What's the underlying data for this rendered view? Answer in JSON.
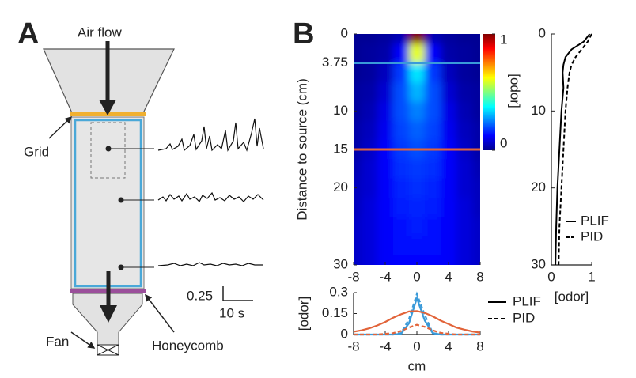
{
  "panels": {
    "a": {
      "label": "A",
      "air_flow": "Air flow",
      "grid": "Grid",
      "fan": "Fan",
      "honeycomb": "Honeycomb",
      "scale_y": "0.25",
      "scale_x": "10 s"
    },
    "b": {
      "label": "B"
    }
  },
  "chart_data": [
    {
      "type": "heatmap",
      "y_label": "Distance to source (cm)",
      "x": [
        -8,
        -6,
        -4,
        -2,
        0,
        2,
        4,
        6,
        8
      ],
      "y": [
        0,
        2.5,
        5,
        7.5,
        10,
        12.5,
        15,
        17.5,
        20,
        22.5,
        25,
        27.5,
        30
      ],
      "values": [
        [
          0.02,
          0.02,
          0.03,
          0.05,
          1.0,
          0.05,
          0.03,
          0.02,
          0.02
        ],
        [
          0.02,
          0.03,
          0.04,
          0.12,
          0.6,
          0.12,
          0.04,
          0.03,
          0.02
        ],
        [
          0.02,
          0.03,
          0.06,
          0.18,
          0.35,
          0.18,
          0.06,
          0.03,
          0.02
        ],
        [
          0.03,
          0.04,
          0.08,
          0.2,
          0.3,
          0.2,
          0.08,
          0.04,
          0.03
        ],
        [
          0.03,
          0.05,
          0.1,
          0.2,
          0.25,
          0.2,
          0.1,
          0.05,
          0.03
        ],
        [
          0.04,
          0.06,
          0.11,
          0.19,
          0.22,
          0.19,
          0.11,
          0.06,
          0.04
        ],
        [
          0.04,
          0.07,
          0.12,
          0.18,
          0.2,
          0.18,
          0.12,
          0.07,
          0.04
        ],
        [
          0.05,
          0.08,
          0.12,
          0.17,
          0.18,
          0.17,
          0.12,
          0.08,
          0.05
        ],
        [
          0.06,
          0.08,
          0.12,
          0.16,
          0.17,
          0.16,
          0.12,
          0.08,
          0.06
        ],
        [
          0.06,
          0.09,
          0.12,
          0.15,
          0.16,
          0.15,
          0.12,
          0.09,
          0.06
        ],
        [
          0.07,
          0.09,
          0.12,
          0.14,
          0.15,
          0.14,
          0.12,
          0.09,
          0.07
        ],
        [
          0.07,
          0.09,
          0.12,
          0.14,
          0.14,
          0.14,
          0.12,
          0.09,
          0.07
        ],
        [
          0.07,
          0.09,
          0.12,
          0.13,
          0.13,
          0.13,
          0.12,
          0.09,
          0.07
        ]
      ],
      "xlim": [
        -8,
        8
      ],
      "xticks": [
        -8,
        -4,
        0,
        4,
        8
      ],
      "ylim": [
        0,
        30
      ],
      "yticks": [
        0,
        3.75,
        10,
        15,
        20,
        30
      ],
      "y_reversed": true,
      "colormap": "jet",
      "colorbar": {
        "label": "[odor]",
        "lim": [
          0,
          1
        ],
        "ticks": [
          0,
          1
        ]
      },
      "lines": [
        {
          "y": 3.75,
          "color": "#3a9ad9"
        },
        {
          "y": 15,
          "color": "#e2643a"
        }
      ]
    },
    {
      "type": "profile",
      "x_label": "[odor]",
      "y": [
        0,
        1,
        2,
        3,
        4,
        5,
        7,
        10,
        15,
        20,
        25,
        30
      ],
      "series": [
        {
          "name": "PLIF",
          "color": "#000000",
          "dash": false,
          "values": [
            0.95,
            0.8,
            0.5,
            0.35,
            0.3,
            0.28,
            0.3,
            0.25,
            0.2,
            0.15,
            0.12,
            0.1
          ]
        },
        {
          "name": "PID",
          "color": "#000000",
          "dash": true,
          "values": [
            1.0,
            0.9,
            0.75,
            0.6,
            0.5,
            0.45,
            0.4,
            0.35,
            0.3,
            0.25,
            0.2,
            0.18
          ]
        }
      ],
      "xlim": [
        0,
        1
      ],
      "xticks": [
        0,
        1
      ],
      "ylim": [
        0,
        30
      ],
      "yticks": [
        0,
        10,
        20,
        30
      ],
      "y_reversed": true
    },
    {
      "type": "line",
      "x_label": "cm",
      "y_label": "[odor]",
      "x": [
        -8,
        -7,
        -6,
        -5,
        -4,
        -3,
        -2,
        -1,
        0,
        1,
        2,
        3,
        4,
        5,
        6,
        7,
        8
      ],
      "series": [
        {
          "color": "#3a9ad9",
          "dash": false,
          "values": [
            0,
            0,
            0,
            0,
            0,
            0,
            0.005,
            0.08,
            0.26,
            0.1,
            0.01,
            0,
            0,
            0,
            0,
            0,
            0
          ]
        },
        {
          "color": "#3a9ad9",
          "dash": true,
          "values": [
            0,
            0,
            0,
            0,
            0,
            0,
            0.01,
            0.11,
            0.29,
            0.14,
            0.01,
            0,
            0,
            0,
            0,
            0,
            0
          ]
        },
        {
          "color": "#e2643a",
          "dash": false,
          "values": [
            0.02,
            0.03,
            0.045,
            0.065,
            0.09,
            0.12,
            0.145,
            0.165,
            0.168,
            0.155,
            0.13,
            0.1,
            0.075,
            0.05,
            0.035,
            0.022,
            0.014
          ]
        },
        {
          "color": "#e2643a",
          "dash": true,
          "values": [
            0,
            0,
            0,
            0,
            0.005,
            0.01,
            0.025,
            0.05,
            0.07,
            0.055,
            0.03,
            0.012,
            0.005,
            0,
            0,
            0,
            0
          ]
        }
      ],
      "legend": [
        {
          "label": "PLIF",
          "dash": false
        },
        {
          "label": "PID",
          "dash": true
        }
      ],
      "xlim": [
        -8,
        8
      ],
      "xticks": [
        -8,
        -4,
        0,
        4,
        8
      ],
      "ylim": [
        0,
        0.3
      ],
      "yticks": [
        0,
        0.15,
        0.3
      ]
    }
  ]
}
